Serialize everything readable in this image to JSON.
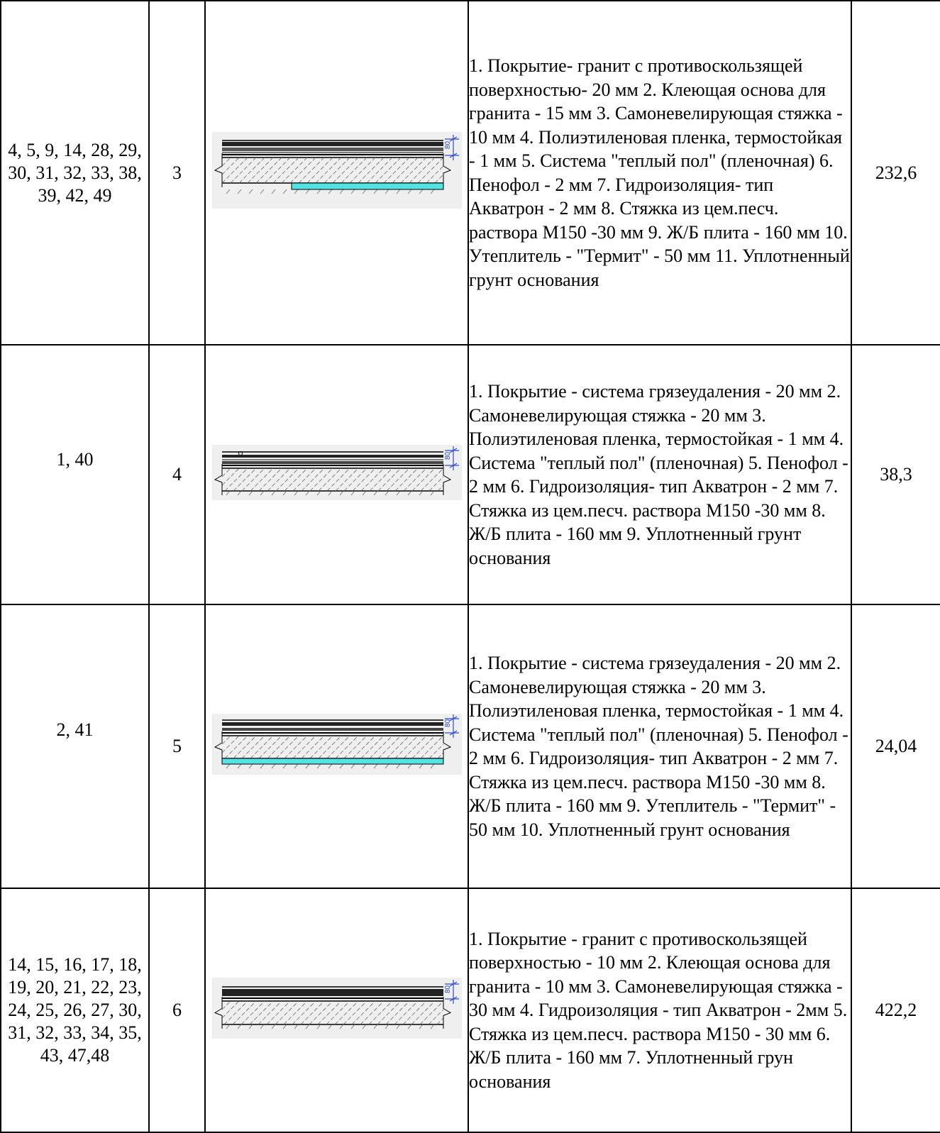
{
  "rows": [
    {
      "rooms": "4, 5, 9, 14, 28, 29, 30, 31, 32, 33, 38, 39, 42, 49",
      "type": "3",
      "dimension_label": "80",
      "description": " 1. Покрытие- гранит с противоскользящей поверхностью- 20 мм 2. Клеющая основа для гранита - 15 мм  3. Самоневелирующая стяжка - 10 мм  4. Полиэтиленовая пленка, термостойкая - 1 мм  5. Система \"теплый пол\" (пленочная)  6. Пенофол - 2 мм  7. Гидроизоляция- тип Акватрон - 2 мм 8. Стяжка из цем.песч. раствора М150 -30 мм  9. Ж/Б плита - 160 мм  10. Утеплитель - \"Термит\" - 50 мм  11. Уплотненный грунт основания",
      "area": "232,6"
    },
    {
      "rooms": "1, 40",
      "type": "4",
      "dimension_label": "80",
      "description": " 1. Покрытие - система грязеудаления - 20 мм  2. Самоневелирующая стяжка - 20 мм  3. Полиэтиленовая пленка, термостойкая - 1 мм  4. Система \"теплый пол\" (пленочная)  5. Пенофол - 2 мм  6. Гидроизоляция- тип Акватрон - 2 мм  7. Стяжка из цем.песч. раствора М150 -30 мм  8. Ж/Б плита - 160 мм  9. Уплотненный грунт основания",
      "area": "38,3"
    },
    {
      "rooms": "2, 41",
      "type": "5",
      "dimension_label": "80",
      "description": " 1. Покрытие - система грязеудаления - 20 мм  2. Самоневелирующая стяжка - 20 мм  3. Полиэтиленовая пленка, термостойкая - 1 мм  4. Система \"теплый пол\" (пленочная)  5. Пенофол - 2 мм  6. Гидроизоляция- тип Акватрон - 2 мм  7. Стяжка из цем.песч. раствора М150 -30 мм  8. Ж/Б плита - 160 мм  9. Утеплитель - \"Термит\" - 50 мм  10. Уплотненный грунт основания",
      "area": "24,04"
    },
    {
      "rooms": "14, 15, 16, 17, 18, 19, 20, 21, 22, 23, 24, 25, 26, 27, 30, 31, 32, 33, 34, 35, 43, 47,48",
      "type": "6",
      "dimension_label": "80",
      "description": " 1. Покрытие - гранит с противоскользящей поверхностью - 10 мм 2. Клеющая основа для гранита - 10 мм  3. Самоневелирующая стяжка - 30 мм  4. Гидроизоляция - тип Акватрон - 2мм  5. Стяжка из цем.песч. раствора М150 - 30 мм  6. Ж/Б плита - 160 мм 7. Уплотненный грун основания",
      "area": "422,2"
    }
  ],
  "colors": {
    "insulation": "#53e3e3",
    "dimension": "#2b4bd6",
    "drawing_bg": "#efefef"
  }
}
